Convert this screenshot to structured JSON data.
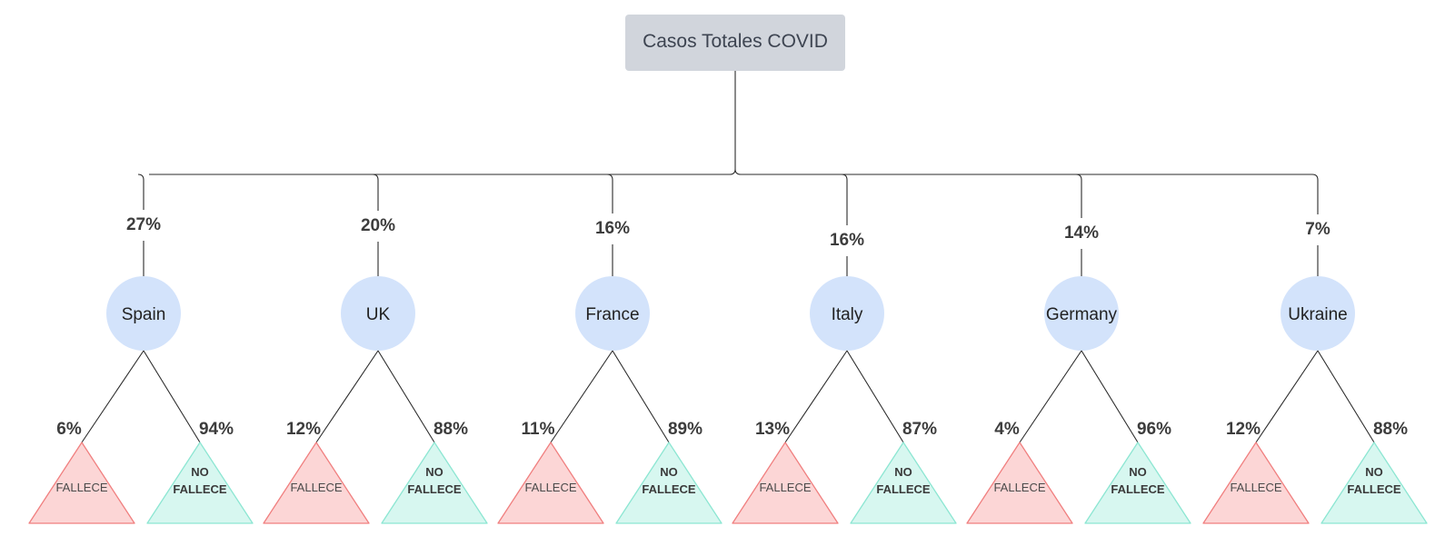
{
  "root": {
    "label": "Casos Totales COVID"
  },
  "colors": {
    "root_fill": "#d1d5dc",
    "circle_fill": "#d3e3fb",
    "fallece_fill": "#fcd6d6",
    "fallece_stroke": "#f07f7f",
    "nofallece_fill": "#d7f7f0",
    "nofallece_stroke": "#8ce6d2",
    "line": "#2b2b2b"
  },
  "outcome_labels": {
    "fallece": "FALLECE",
    "no_line1": "NO",
    "no_line2": "FALLECE"
  },
  "countries": [
    {
      "name": "Spain",
      "share": "27%",
      "fallece": "6%",
      "no_fallece": "94%"
    },
    {
      "name": "UK",
      "share": "20%",
      "fallece": "12%",
      "no_fallece": "88%"
    },
    {
      "name": "France",
      "share": "16%",
      "fallece": "11%",
      "no_fallece": "89%"
    },
    {
      "name": "Italy",
      "share": "16%",
      "fallece": "13%",
      "no_fallece": "87%"
    },
    {
      "name": "Germany",
      "share": "14%",
      "fallece": "4%",
      "no_fallece": "96%"
    },
    {
      "name": "Ukraine",
      "share": "7%",
      "fallece": "12%",
      "no_fallece": "88%"
    }
  ]
}
